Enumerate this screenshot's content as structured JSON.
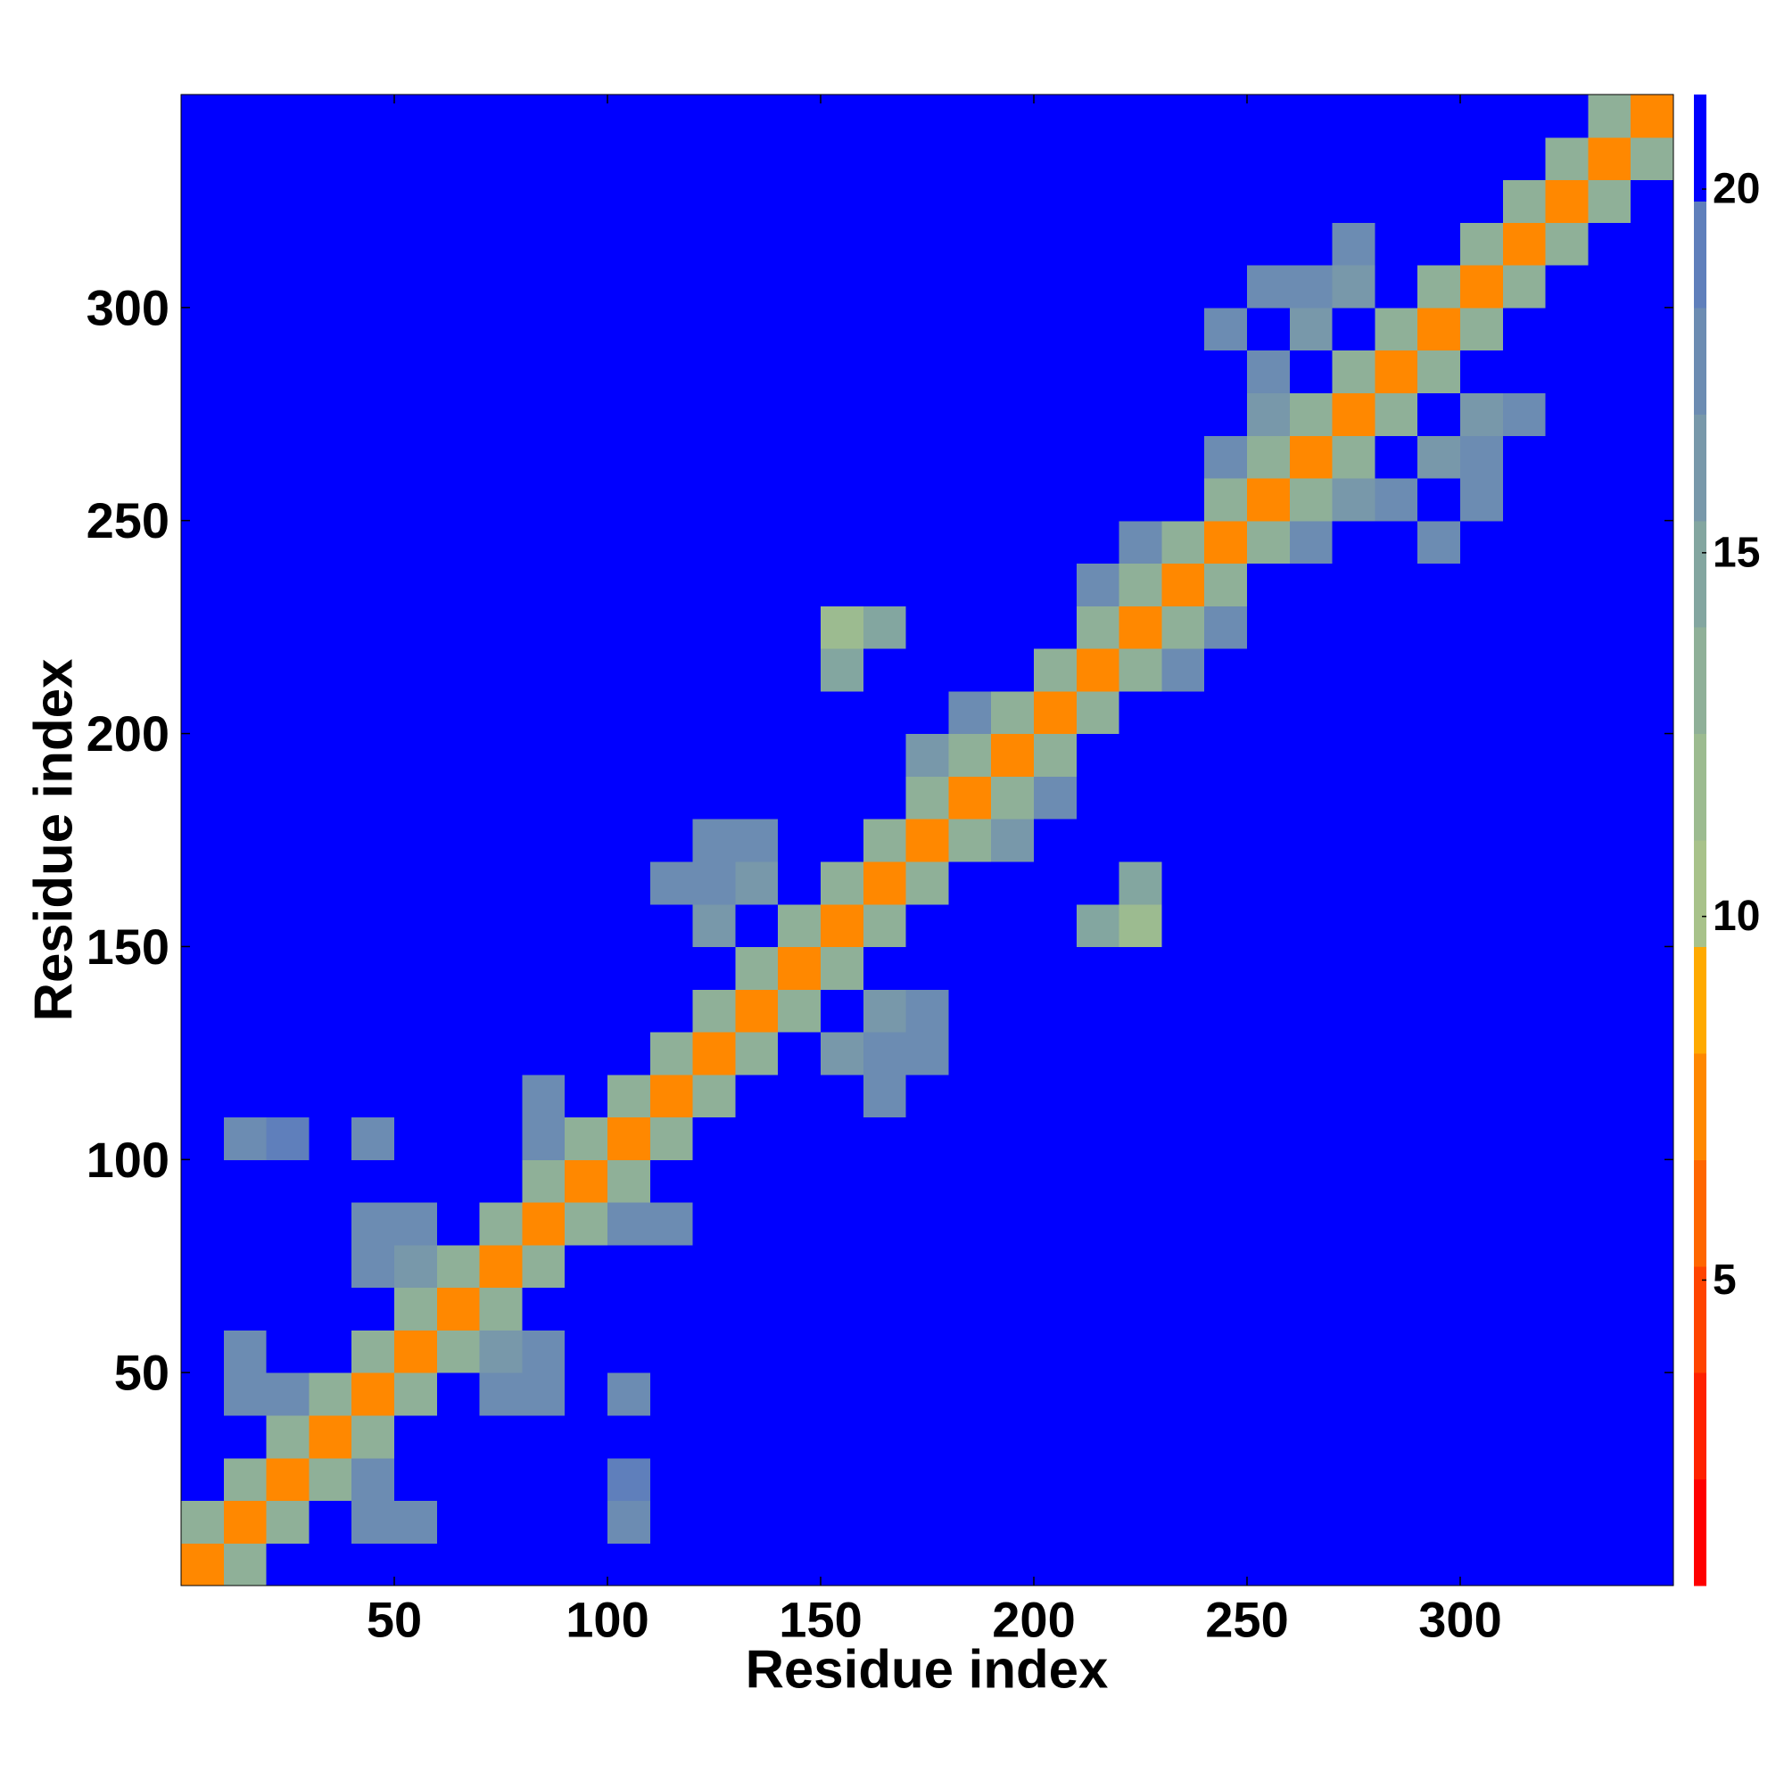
{
  "chart_data": {
    "type": "heatmap",
    "xlabel": "Residue index",
    "ylabel": "Residue index",
    "xbins": [
      0,
      10,
      20,
      30,
      40,
      50,
      60,
      70,
      80,
      90,
      100,
      110,
      120,
      130,
      140,
      150,
      160,
      170,
      180,
      190,
      200,
      210,
      220,
      230,
      240,
      250,
      260,
      270,
      280,
      290,
      300,
      310,
      320,
      330,
      340,
      350
    ],
    "ybins": [
      0,
      10,
      20,
      30,
      40,
      50,
      60,
      70,
      80,
      90,
      100,
      110,
      120,
      130,
      140,
      150,
      160,
      170,
      180,
      190,
      200,
      210,
      220,
      230,
      240,
      250,
      260,
      270,
      280,
      290,
      300,
      310,
      320,
      330,
      340,
      350
    ],
    "z": [
      [
        7,
        13,
        21,
        21,
        21,
        21,
        21,
        21,
        21,
        21,
        21,
        21,
        21,
        21,
        21,
        21,
        21,
        21,
        21,
        21,
        21,
        21,
        21,
        21,
        21,
        21,
        21,
        21,
        21,
        21,
        21,
        21,
        21,
        21,
        21
      ],
      [
        13,
        7,
        13,
        21,
        17,
        18,
        21,
        21,
        21,
        21,
        18,
        20,
        21,
        21,
        21,
        21,
        21,
        21,
        21,
        21,
        21,
        21,
        21,
        21,
        21,
        21,
        21,
        21,
        21,
        21,
        21,
        21,
        21,
        21,
        21
      ],
      [
        21,
        13,
        7,
        13,
        17,
        21,
        21,
        21,
        21,
        21,
        19,
        21,
        21,
        21,
        21,
        21,
        21,
        21,
        21,
        21,
        21,
        21,
        21,
        21,
        21,
        21,
        21,
        21,
        21,
        21,
        21,
        21,
        21,
        21,
        21
      ],
      [
        21,
        21,
        13,
        7,
        13,
        21,
        21,
        21,
        21,
        21,
        21,
        21,
        21,
        21,
        21,
        21,
        21,
        21,
        21,
        21,
        21,
        21,
        21,
        21,
        21,
        21,
        21,
        21,
        21,
        21,
        21,
        21,
        21,
        21,
        21
      ],
      [
        21,
        17,
        17,
        13,
        7,
        13,
        21,
        17,
        18,
        21,
        18,
        21,
        21,
        21,
        21,
        21,
        21,
        21,
        21,
        21,
        21,
        21,
        21,
        21,
        21,
        21,
        21,
        21,
        21,
        21,
        21,
        21,
        21,
        21,
        21
      ],
      [
        21,
        18,
        21,
        21,
        13,
        7,
        13,
        16,
        17,
        21,
        21,
        21,
        21,
        21,
        21,
        21,
        21,
        21,
        21,
        21,
        21,
        21,
        21,
        21,
        21,
        21,
        21,
        21,
        21,
        21,
        21,
        21,
        21,
        21,
        21
      ],
      [
        21,
        21,
        21,
        21,
        21,
        13,
        7,
        13,
        21,
        21,
        21,
        21,
        21,
        21,
        21,
        21,
        21,
        21,
        21,
        21,
        21,
        21,
        21,
        21,
        21,
        21,
        21,
        21,
        21,
        21,
        21,
        21,
        21,
        21,
        21
      ],
      [
        21,
        21,
        21,
        21,
        17,
        16,
        13,
        7,
        13,
        21,
        21,
        21,
        21,
        21,
        21,
        21,
        21,
        21,
        21,
        21,
        21,
        21,
        21,
        21,
        21,
        21,
        21,
        21,
        21,
        21,
        21,
        21,
        21,
        21,
        21
      ],
      [
        21,
        21,
        21,
        21,
        18,
        17,
        21,
        13,
        7,
        13,
        17,
        17,
        21,
        21,
        21,
        21,
        21,
        21,
        21,
        21,
        21,
        21,
        21,
        21,
        21,
        21,
        21,
        21,
        21,
        21,
        21,
        21,
        21,
        21,
        21
      ],
      [
        21,
        21,
        21,
        21,
        21,
        21,
        21,
        21,
        13,
        7,
        13,
        21,
        21,
        21,
        21,
        21,
        21,
        21,
        21,
        21,
        21,
        21,
        21,
        21,
        21,
        21,
        21,
        21,
        21,
        21,
        21,
        21,
        21,
        21,
        21
      ],
      [
        21,
        18,
        19,
        21,
        18,
        21,
        21,
        21,
        17,
        13,
        7,
        13,
        21,
        21,
        21,
        21,
        21,
        21,
        21,
        21,
        21,
        21,
        21,
        21,
        21,
        21,
        21,
        21,
        21,
        21,
        21,
        21,
        21,
        21,
        21
      ],
      [
        21,
        20,
        21,
        21,
        21,
        21,
        21,
        21,
        17,
        21,
        13,
        7,
        13,
        21,
        21,
        21,
        18,
        21,
        21,
        21,
        21,
        21,
        21,
        21,
        21,
        21,
        21,
        21,
        21,
        21,
        21,
        21,
        21,
        21,
        21
      ],
      [
        21,
        21,
        21,
        21,
        21,
        21,
        21,
        21,
        21,
        21,
        21,
        13,
        7,
        13,
        21,
        16,
        17,
        18,
        21,
        21,
        21,
        21,
        21,
        21,
        21,
        21,
        21,
        21,
        21,
        21,
        21,
        21,
        21,
        21,
        21
      ],
      [
        21,
        21,
        21,
        21,
        21,
        21,
        21,
        21,
        21,
        21,
        21,
        21,
        13,
        7,
        13,
        21,
        16,
        17,
        21,
        21,
        21,
        21,
        21,
        21,
        21,
        21,
        21,
        21,
        21,
        21,
        21,
        21,
        21,
        21,
        21
      ],
      [
        21,
        21,
        21,
        21,
        21,
        21,
        21,
        21,
        21,
        21,
        21,
        21,
        21,
        13,
        7,
        13,
        21,
        21,
        21,
        21,
        21,
        21,
        21,
        21,
        21,
        21,
        21,
        21,
        21,
        21,
        21,
        21,
        21,
        21,
        21
      ],
      [
        21,
        21,
        21,
        21,
        21,
        21,
        21,
        21,
        21,
        21,
        21,
        21,
        16,
        21,
        13,
        7,
        13,
        21,
        21,
        21,
        21,
        15,
        12,
        21,
        21,
        21,
        21,
        21,
        21,
        21,
        21,
        21,
        21,
        21,
        21
      ],
      [
        21,
        21,
        21,
        21,
        21,
        21,
        21,
        21,
        21,
        21,
        21,
        18,
        17,
        16,
        21,
        13,
        7,
        13,
        21,
        21,
        21,
        21,
        14,
        21,
        21,
        21,
        21,
        21,
        21,
        21,
        21,
        21,
        21,
        21,
        21
      ],
      [
        21,
        21,
        21,
        21,
        21,
        21,
        21,
        21,
        21,
        21,
        21,
        21,
        18,
        17,
        21,
        21,
        13,
        7,
        13,
        16,
        21,
        21,
        21,
        21,
        21,
        21,
        21,
        21,
        21,
        21,
        21,
        21,
        21,
        21,
        21
      ],
      [
        21,
        21,
        21,
        21,
        21,
        21,
        21,
        21,
        21,
        21,
        21,
        21,
        21,
        21,
        21,
        21,
        21,
        13,
        7,
        13,
        17,
        21,
        21,
        21,
        21,
        21,
        21,
        21,
        21,
        21,
        21,
        21,
        21,
        21,
        21
      ],
      [
        21,
        21,
        21,
        21,
        21,
        21,
        21,
        21,
        21,
        21,
        21,
        21,
        21,
        21,
        21,
        21,
        21,
        16,
        13,
        7,
        13,
        21,
        21,
        21,
        21,
        21,
        21,
        21,
        21,
        21,
        21,
        21,
        21,
        21,
        21
      ],
      [
        21,
        21,
        21,
        21,
        21,
        21,
        21,
        21,
        21,
        21,
        21,
        21,
        21,
        21,
        21,
        21,
        21,
        21,
        17,
        13,
        7,
        13,
        21,
        21,
        21,
        21,
        21,
        21,
        21,
        21,
        21,
        21,
        21,
        21,
        21
      ],
      [
        21,
        21,
        21,
        21,
        21,
        21,
        21,
        21,
        21,
        21,
        21,
        21,
        21,
        21,
        21,
        15,
        21,
        21,
        21,
        21,
        13,
        7,
        13,
        17,
        21,
        21,
        21,
        21,
        21,
        21,
        21,
        21,
        21,
        21,
        21
      ],
      [
        21,
        21,
        21,
        21,
        21,
        21,
        21,
        21,
        21,
        21,
        21,
        21,
        21,
        21,
        21,
        12,
        14,
        21,
        21,
        21,
        21,
        13,
        7,
        13,
        18,
        21,
        21,
        21,
        21,
        21,
        21,
        21,
        21,
        21,
        21
      ],
      [
        21,
        21,
        21,
        21,
        21,
        21,
        21,
        21,
        21,
        21,
        21,
        21,
        21,
        21,
        21,
        21,
        21,
        21,
        21,
        21,
        21,
        17,
        13,
        7,
        13,
        21,
        21,
        21,
        21,
        21,
        21,
        21,
        21,
        21,
        21
      ],
      [
        21,
        21,
        21,
        21,
        21,
        21,
        21,
        21,
        21,
        21,
        21,
        21,
        21,
        21,
        21,
        21,
        21,
        21,
        21,
        21,
        21,
        21,
        18,
        13,
        7,
        13,
        18,
        21,
        21,
        18,
        21,
        21,
        21,
        21,
        21
      ],
      [
        21,
        21,
        21,
        21,
        21,
        21,
        21,
        21,
        21,
        21,
        21,
        21,
        21,
        21,
        21,
        21,
        21,
        21,
        21,
        21,
        21,
        21,
        21,
        21,
        13,
        7,
        13,
        16,
        17,
        21,
        18,
        21,
        21,
        21,
        21
      ],
      [
        21,
        21,
        21,
        21,
        21,
        21,
        21,
        21,
        21,
        21,
        21,
        21,
        21,
        21,
        21,
        21,
        21,
        21,
        21,
        21,
        21,
        21,
        21,
        21,
        18,
        13,
        7,
        13,
        21,
        16,
        17,
        21,
        21,
        21,
        21
      ],
      [
        21,
        21,
        21,
        21,
        21,
        21,
        21,
        21,
        21,
        21,
        21,
        21,
        21,
        21,
        21,
        21,
        21,
        21,
        21,
        21,
        21,
        21,
        21,
        21,
        21,
        16,
        13,
        7,
        13,
        21,
        16,
        18,
        21,
        21,
        21
      ],
      [
        21,
        21,
        21,
        21,
        21,
        21,
        21,
        21,
        21,
        21,
        21,
        21,
        21,
        21,
        21,
        21,
        21,
        21,
        21,
        21,
        21,
        21,
        21,
        21,
        21,
        17,
        21,
        13,
        7,
        13,
        21,
        21,
        21,
        21,
        21
      ],
      [
        21,
        21,
        21,
        21,
        21,
        21,
        21,
        21,
        21,
        21,
        21,
        21,
        21,
        21,
        21,
        21,
        21,
        21,
        21,
        21,
        21,
        21,
        21,
        21,
        18,
        21,
        16,
        21,
        13,
        7,
        13,
        21,
        21,
        21,
        21
      ],
      [
        21,
        21,
        21,
        21,
        21,
        21,
        21,
        21,
        21,
        21,
        21,
        21,
        21,
        21,
        21,
        21,
        21,
        21,
        21,
        21,
        21,
        21,
        21,
        21,
        21,
        18,
        17,
        16,
        21,
        13,
        7,
        13,
        21,
        21,
        21
      ],
      [
        21,
        21,
        21,
        21,
        21,
        21,
        21,
        21,
        21,
        21,
        21,
        21,
        21,
        21,
        21,
        21,
        21,
        21,
        21,
        21,
        21,
        21,
        21,
        21,
        21,
        21,
        21,
        18,
        21,
        21,
        13,
        7,
        13,
        21,
        21
      ],
      [
        21,
        21,
        21,
        21,
        21,
        21,
        21,
        21,
        21,
        21,
        21,
        21,
        21,
        21,
        21,
        21,
        21,
        21,
        21,
        21,
        21,
        21,
        21,
        21,
        21,
        21,
        21,
        21,
        21,
        21,
        21,
        13,
        7,
        13,
        21
      ],
      [
        21,
        21,
        21,
        21,
        21,
        21,
        21,
        21,
        21,
        21,
        21,
        21,
        21,
        21,
        21,
        21,
        21,
        21,
        21,
        21,
        21,
        21,
        21,
        21,
        21,
        21,
        21,
        21,
        21,
        21,
        21,
        21,
        13,
        7,
        13
      ],
      [
        21,
        21,
        21,
        21,
        21,
        21,
        21,
        21,
        21,
        21,
        21,
        21,
        21,
        21,
        21,
        21,
        21,
        21,
        21,
        21,
        21,
        21,
        21,
        21,
        21,
        21,
        21,
        21,
        21,
        21,
        21,
        21,
        21,
        13,
        7
      ]
    ],
    "xlim": [
      0,
      350
    ],
    "ylim": [
      0,
      350
    ],
    "xticks": [
      50,
      100,
      150,
      200,
      250,
      300
    ],
    "yticks": [
      50,
      100,
      150,
      200,
      250,
      300
    ],
    "colorbar": {
      "lim": [
        0.8,
        21.3
      ],
      "ticks": [
        5,
        10,
        15,
        20
      ],
      "colors": [
        "#ff0000",
        "#ff2200",
        "#ff4400",
        "#ff6600",
        "#ff8800",
        "#ffaa00",
        "#a8c28a",
        "#9cbb90",
        "#8fb098",
        "#83a6a0",
        "#7898aa",
        "#6c8cb2",
        "#5f7fbb",
        "#0000ff"
      ]
    }
  }
}
